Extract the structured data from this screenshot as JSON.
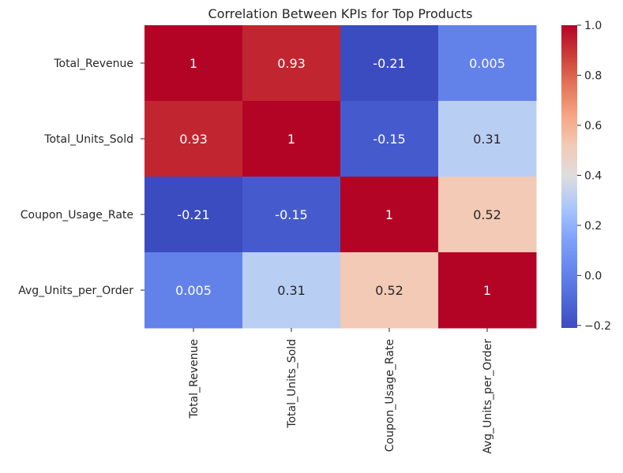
{
  "chart_data": {
    "type": "heatmap",
    "title": "Correlation Between KPIs for Top Products",
    "xlabel": "",
    "ylabel": "",
    "x_categories": [
      "Total_Revenue",
      "Total_Units_Sold",
      "Coupon_Usage_Rate",
      "Avg_Units_per_Order"
    ],
    "y_categories": [
      "Total_Revenue",
      "Total_Units_Sold",
      "Coupon_Usage_Rate",
      "Avg_Units_per_Order"
    ],
    "values": [
      [
        1,
        0.93,
        -0.21,
        0.005
      ],
      [
        0.93,
        1,
        -0.15,
        0.31
      ],
      [
        -0.21,
        -0.15,
        1,
        0.52
      ],
      [
        0.005,
        0.31,
        0.52,
        1
      ]
    ],
    "cell_labels": [
      [
        "1",
        "0.93",
        "-0.21",
        "0.005"
      ],
      [
        "0.93",
        "1",
        "-0.15",
        "0.31"
      ],
      [
        "-0.21",
        "-0.15",
        "1",
        "0.52"
      ],
      [
        "0.005",
        "0.31",
        "0.52",
        "1"
      ]
    ],
    "colormap": "coolwarm",
    "vmin": -0.21,
    "vmax": 1,
    "colorbar": {
      "ticks": [
        -0.2,
        0.0,
        0.2,
        0.4,
        0.6,
        0.8,
        1.0
      ],
      "tick_labels": [
        "−0.2",
        "0.0",
        "0.2",
        "0.4",
        "0.6",
        "0.8",
        "1.0"
      ],
      "position": "right"
    },
    "grid": false,
    "colors": {
      "text_dark": "#262626",
      "text_light": "#ffffff",
      "coolwarm_low": "#3b4cc0",
      "coolwarm_mid": "#dddddd",
      "coolwarm_high": "#b40426"
    }
  }
}
